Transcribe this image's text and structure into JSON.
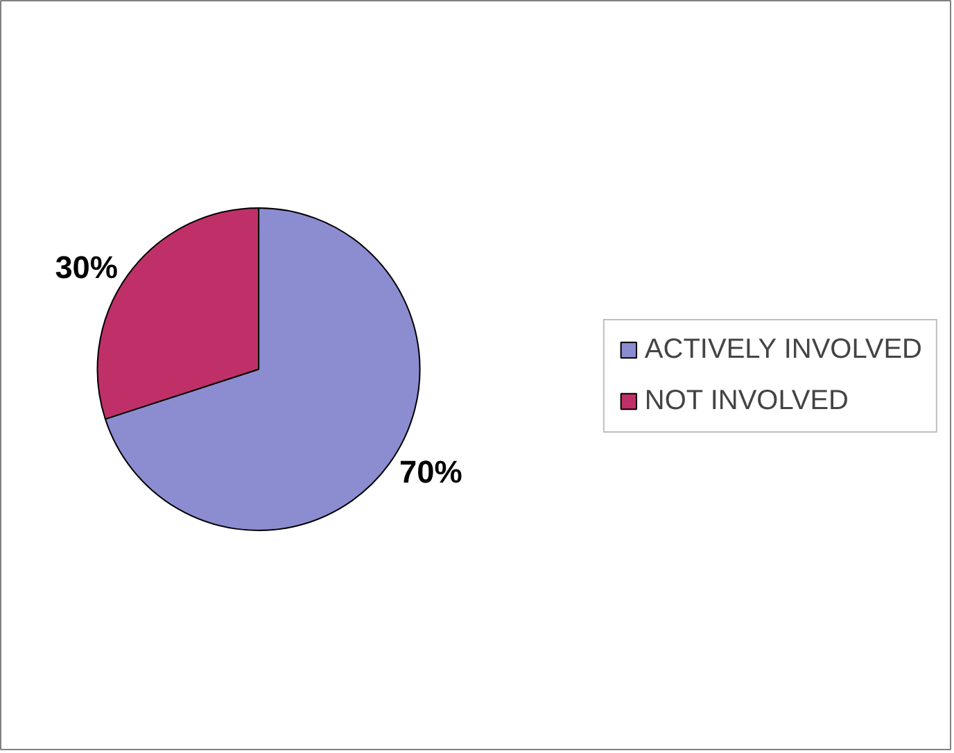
{
  "chart_data": {
    "type": "pie",
    "categories": [
      "ACTIVELY INVOLVED",
      "NOT INVOLVED"
    ],
    "values": [
      70,
      30
    ],
    "colors": [
      "#8c8cd0",
      "#c03068"
    ],
    "value_labels": [
      "70%",
      "30%"
    ],
    "legend": "right"
  }
}
